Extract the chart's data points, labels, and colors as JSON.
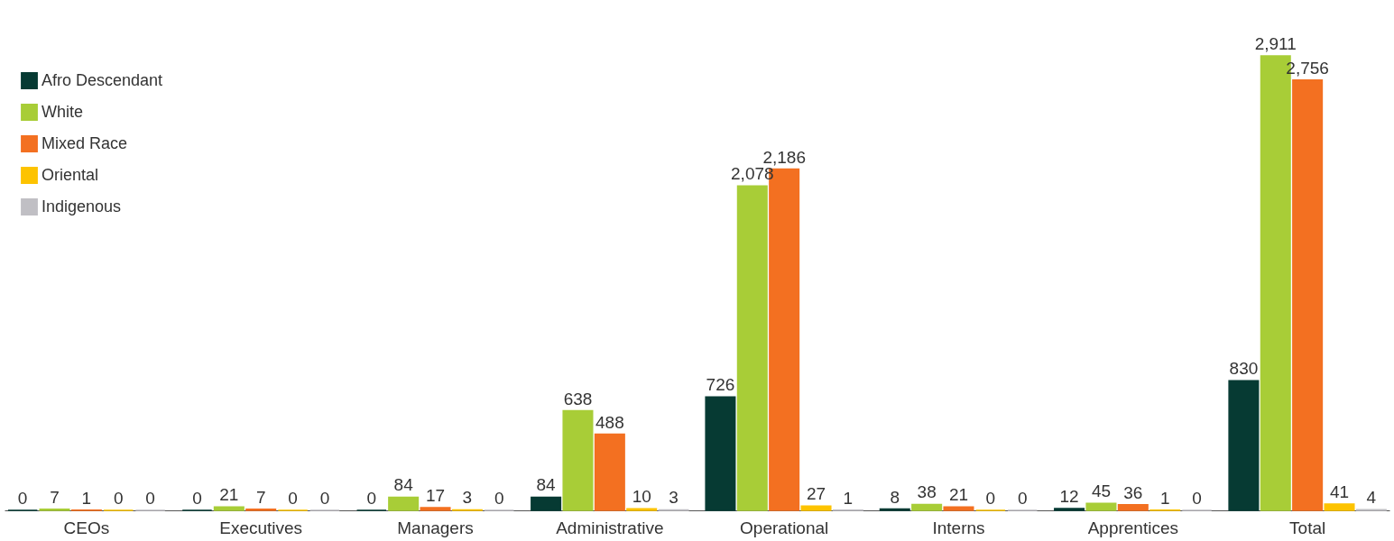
{
  "chart_data": {
    "type": "bar",
    "categories": [
      "CEOs",
      "Executives",
      "Managers",
      "Administrative",
      "Operational",
      "Interns",
      "Apprentices",
      "Total"
    ],
    "series": [
      {
        "name": "Afro Descendant",
        "color": "#063a33",
        "values": [
          0,
          0,
          0,
          84,
          726,
          8,
          12,
          830
        ],
        "value_labels": [
          "0",
          "0",
          "0",
          "84",
          "726",
          "8",
          "12",
          "830"
        ]
      },
      {
        "name": "White",
        "color": "#a8cd37",
        "values": [
          7,
          21,
          84,
          638,
          2078,
          38,
          45,
          2911
        ],
        "value_labels": [
          "7",
          "21",
          "84",
          "638",
          "2,078",
          "38",
          "45",
          "2,911"
        ]
      },
      {
        "name": "Mixed Race",
        "color": "#f37021",
        "values": [
          1,
          7,
          17,
          488,
          2186,
          21,
          36,
          2756
        ],
        "value_labels": [
          "1",
          "7",
          "17",
          "488",
          "2,186",
          "21",
          "36",
          "2,756"
        ]
      },
      {
        "name": "Oriental",
        "color": "#fdc300",
        "values": [
          0,
          0,
          3,
          10,
          27,
          0,
          1,
          41
        ],
        "value_labels": [
          "0",
          "0",
          "3",
          "10",
          "27",
          "0",
          "1",
          "41"
        ]
      },
      {
        "name": "Indigenous",
        "color": "#c0bfc4",
        "values": [
          0,
          0,
          0,
          3,
          1,
          0,
          0,
          4
        ],
        "value_labels": [
          "0",
          "0",
          "0",
          "3",
          "1",
          "0",
          "0",
          "4"
        ]
      }
    ],
    "grid": false,
    "legend": "top left"
  }
}
